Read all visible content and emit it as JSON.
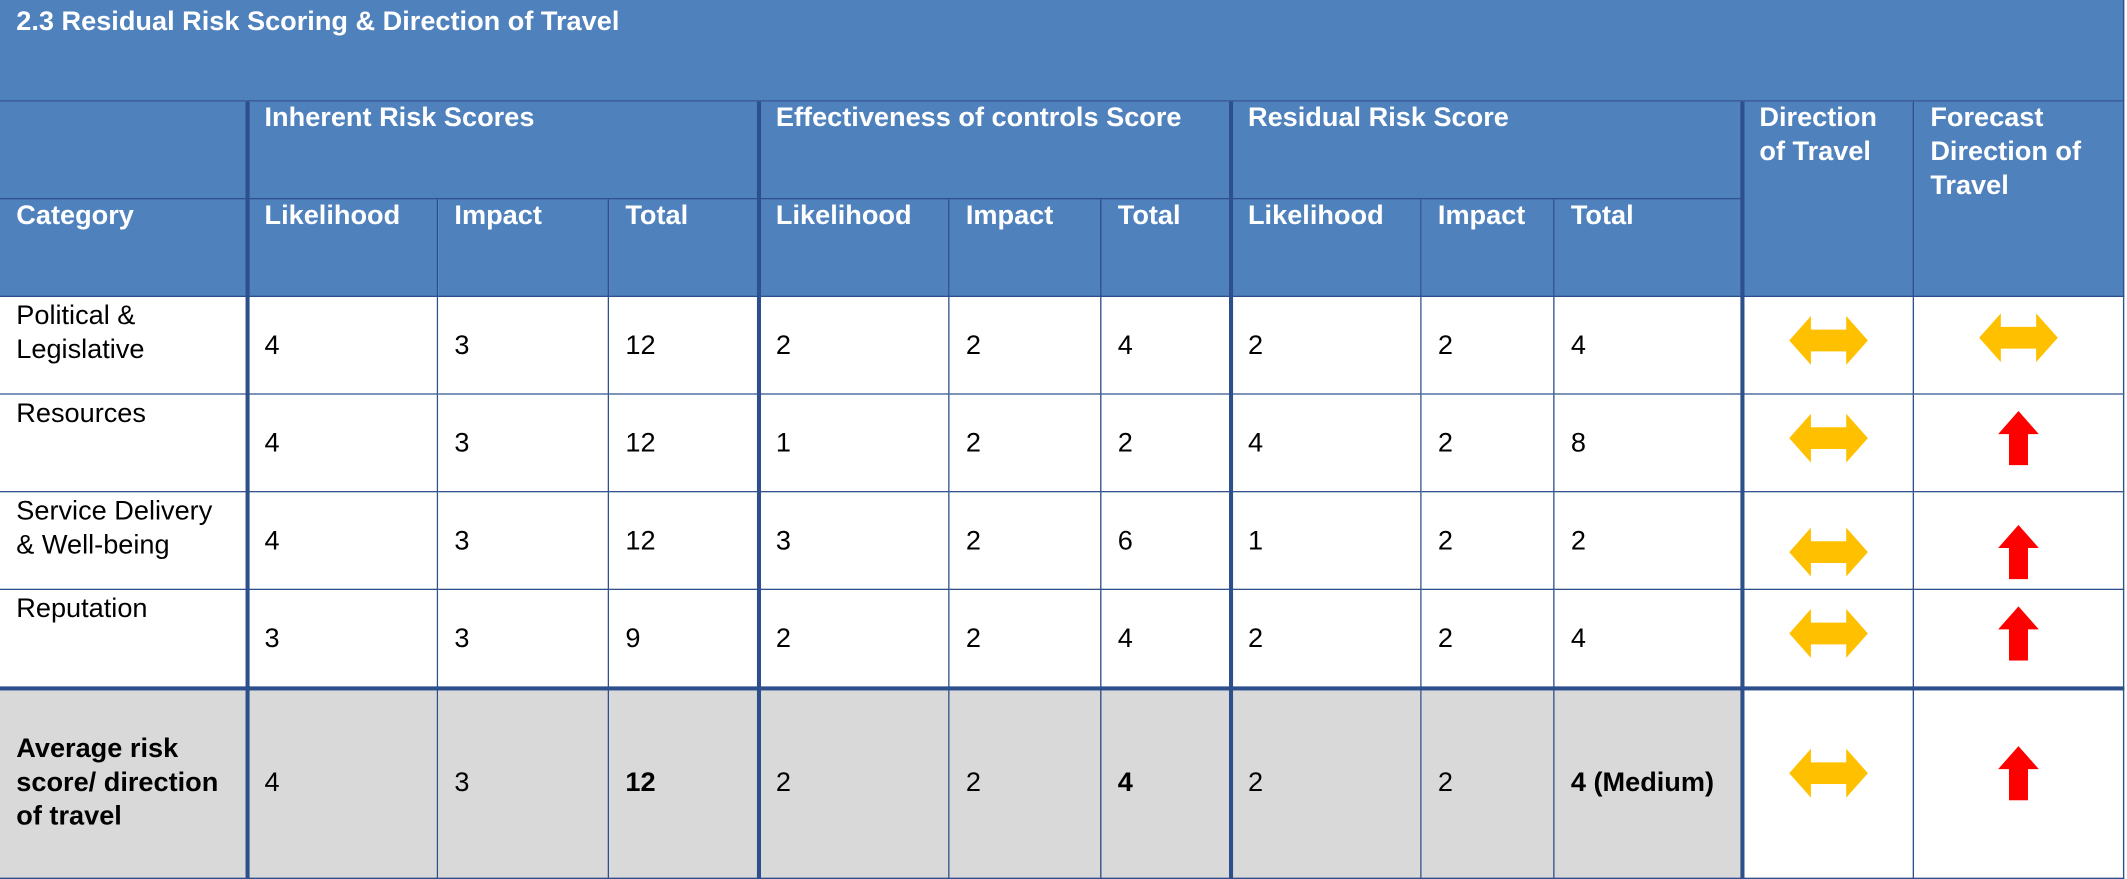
{
  "title": "2.3 Residual Risk Scoring & Direction of Travel",
  "table": {
    "category_header": "Category",
    "groups": [
      "Inherent Risk Scores",
      "Effectiveness of controls Score",
      "Residual Risk Score",
      "Direction of Travel",
      "Forecast Direction of Travel"
    ],
    "subheaders": [
      "Likelihood",
      "Impact",
      "Total",
      "Likelihood",
      "Impact",
      "Total",
      "Likelihood",
      "Impact",
      "Total"
    ],
    "rows": [
      {
        "category": "Political & Legislative",
        "values": [
          4,
          3,
          12,
          2,
          2,
          4,
          2,
          2,
          4
        ]
      },
      {
        "category": "Resources",
        "values": [
          4,
          3,
          12,
          1,
          2,
          2,
          4,
          2,
          8
        ]
      },
      {
        "category": "Service Delivery & Well-being",
        "values": [
          4,
          3,
          12,
          3,
          2,
          6,
          1,
          2,
          2
        ]
      },
      {
        "category": "Reputation",
        "values": [
          3,
          3,
          9,
          2,
          2,
          4,
          2,
          2,
          4
        ]
      }
    ],
    "average": {
      "label": "Average risk score/ direction of travel",
      "values": [
        4,
        3,
        12,
        2,
        2,
        4,
        2,
        2,
        "4 (Medium)"
      ]
    }
  }
}
